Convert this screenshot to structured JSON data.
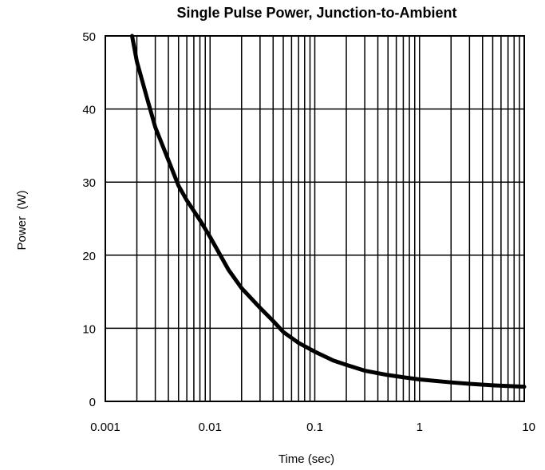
{
  "chart_data": {
    "type": "line",
    "title": "Single Pulse Power, Junction-to-Ambient",
    "xlabel": "Time (sec)",
    "ylabel": "Power  (W)",
    "x_scale": "log",
    "xlim": [
      0.001,
      10
    ],
    "ylim": [
      0,
      50
    ],
    "x_ticks": [
      {
        "value": 0.001,
        "label": "0.001"
      },
      {
        "value": 0.01,
        "label": "0.01"
      },
      {
        "value": 0.1,
        "label": "0.1"
      },
      {
        "value": 1,
        "label": "1"
      },
      {
        "value": 10,
        "label": "10"
      }
    ],
    "y_ticks": [
      {
        "value": 0,
        "label": "0"
      },
      {
        "value": 10,
        "label": "10"
      },
      {
        "value": 20,
        "label": "20"
      },
      {
        "value": 30,
        "label": "30"
      },
      {
        "value": 40,
        "label": "40"
      },
      {
        "value": 50,
        "label": "50"
      }
    ],
    "grid": true,
    "line_color": "#000000",
    "series": [
      {
        "x": [
          0.0018,
          0.002,
          0.0025,
          0.003,
          0.004,
          0.005,
          0.006,
          0.008,
          0.01,
          0.015,
          0.02,
          0.03,
          0.04,
          0.05,
          0.07,
          0.1,
          0.15,
          0.2,
          0.3,
          0.5,
          0.7,
          1,
          2,
          3,
          5,
          7,
          10
        ],
        "y": [
          50,
          46.5,
          41.5,
          37.5,
          33,
          29.5,
          27.5,
          24.8,
          22.5,
          18,
          15.5,
          12.8,
          11,
          9.5,
          8,
          6.8,
          5.6,
          5,
          4.2,
          3.6,
          3.3,
          3.0,
          2.6,
          2.4,
          2.2,
          2.1,
          2.0
        ]
      }
    ]
  }
}
